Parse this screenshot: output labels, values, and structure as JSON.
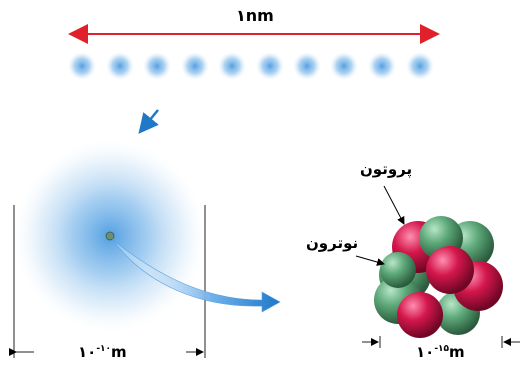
{
  "top_scale": {
    "label": "۱nm"
  },
  "atom": {
    "label": "۱۰-۱۰m",
    "mantissa": "۱۰",
    "exponent": "-۱۰",
    "unit": "m"
  },
  "nucleus": {
    "label": "۱۰-۱۵m",
    "mantissa": "۱۰",
    "exponent": "-۱۵",
    "unit": "m",
    "proton_label": "پروتون",
    "neutron_label": "نوترون"
  },
  "colors": {
    "scale_arrow": "#e0202a",
    "pointer_arrow": "#1f78c8",
    "proton": "#d4174c",
    "neutron": "#5ea97a",
    "atom_cloud": "#4a9be0"
  }
}
